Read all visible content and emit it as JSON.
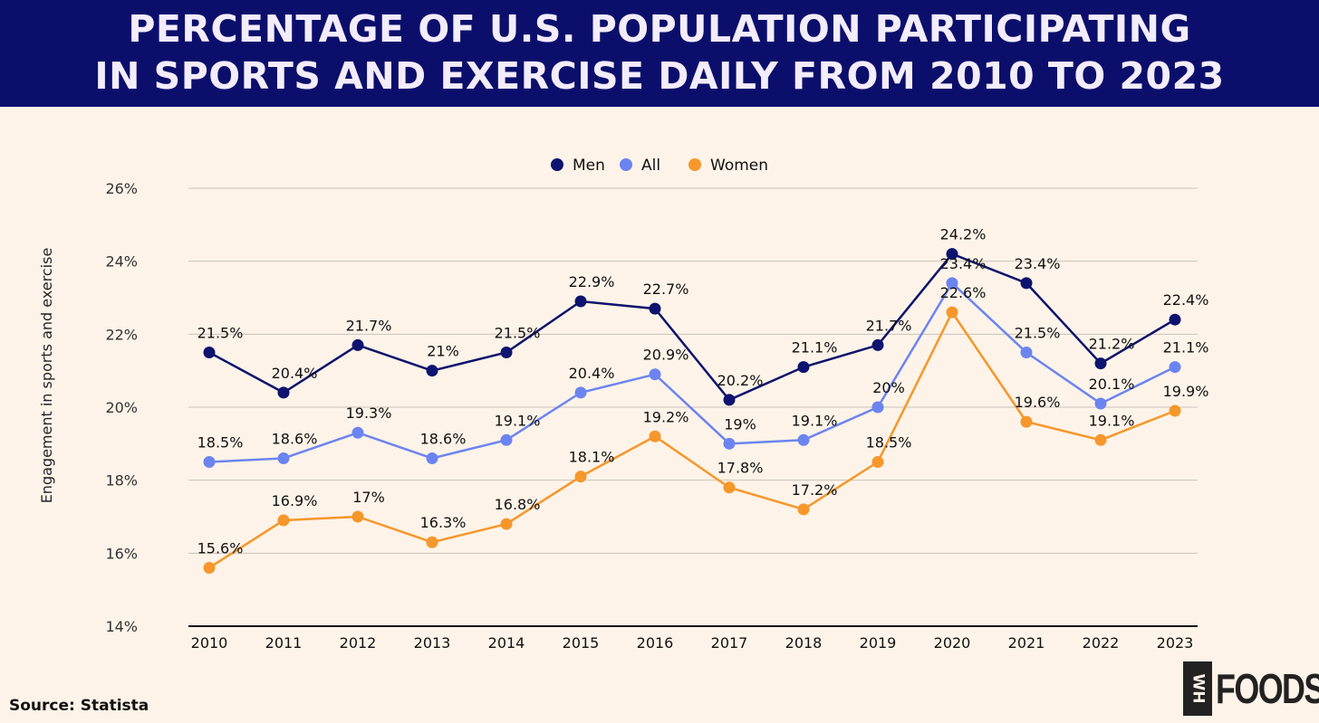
{
  "header": {
    "title_line1": "PERCENTAGE OF U.S. POPULATION PARTICIPATING",
    "title_line2": "IN SPORTS AND EXERCISE DAILY FROM 2010 TO 2023"
  },
  "source": "Source: Statista",
  "logo": {
    "box_text": "WH",
    "word": "FOODS"
  },
  "chart_data": {
    "type": "line",
    "title": "PERCENTAGE OF U.S. POPULATION PARTICIPATING IN SPORTS AND EXERCISE DAILY FROM 2010 TO 2023",
    "xlabel": "",
    "ylabel": "Engagement in sports and exercise",
    "ylim": [
      14,
      26
    ],
    "yticks": [
      14,
      16,
      18,
      20,
      22,
      24,
      26
    ],
    "ytick_labels": [
      "14%",
      "16%",
      "18%",
      "20%",
      "22%",
      "24%",
      "26%"
    ],
    "grid": true,
    "legend_position": "top-center",
    "categories": [
      "2010",
      "2011",
      "2012",
      "2013",
      "2014",
      "2015",
      "2016",
      "2017",
      "2018",
      "2019",
      "2020",
      "2021",
      "2022",
      "2023"
    ],
    "series": [
      {
        "name": "Men",
        "color": "#0d136e",
        "values": [
          21.5,
          20.4,
          21.7,
          21,
          21.5,
          22.9,
          22.7,
          20.2,
          21.1,
          21.7,
          24.2,
          23.4,
          21.2,
          22.4
        ]
      },
      {
        "name": "All",
        "color": "#6b84f0",
        "values": [
          18.5,
          18.6,
          19.3,
          18.6,
          19.1,
          20.4,
          20.9,
          19,
          19.1,
          20,
          23.4,
          21.5,
          20.1,
          21.1
        ]
      },
      {
        "name": "Women",
        "color": "#f5972a",
        "values": [
          15.6,
          16.9,
          17,
          16.3,
          16.8,
          18.1,
          19.2,
          17.8,
          17.2,
          18.5,
          22.6,
          19.6,
          19.1,
          19.9
        ]
      }
    ]
  }
}
